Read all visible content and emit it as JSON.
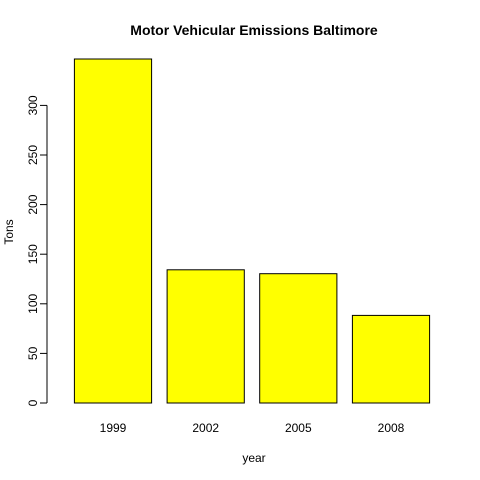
{
  "chart_data": {
    "type": "bar",
    "title": "Motor Vehicular Emissions Baltimore",
    "xlabel": "year",
    "ylabel": "Tons",
    "categories": [
      "1999",
      "2002",
      "2005",
      "2008"
    ],
    "values": [
      346.8,
      134.3,
      130.4,
      88.3
    ],
    "ylim": [
      0,
      346.8
    ],
    "yticks": [
      0,
      50,
      100,
      150,
      200,
      250,
      300
    ],
    "grid": false,
    "legend": "none",
    "colors": {
      "bar_fill": "#ffff00",
      "bar_stroke": "#000000",
      "axis": "#000000",
      "text": "#000000",
      "background": "#ffffff"
    }
  }
}
